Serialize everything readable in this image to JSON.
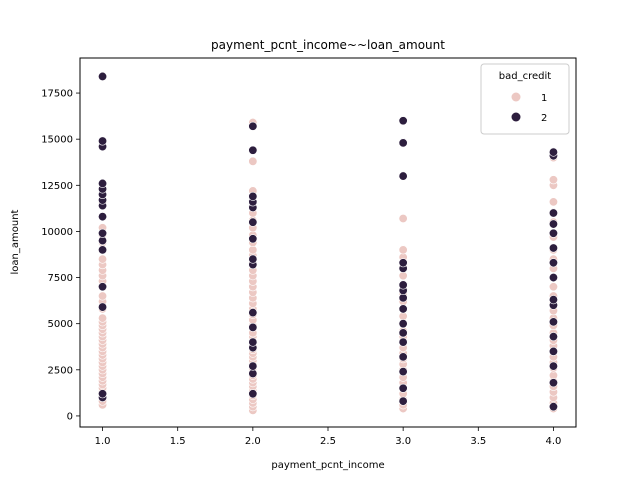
{
  "chart_data": {
    "type": "scatter",
    "title": "payment_pcnt_income~~loan_amount",
    "xlabel": "payment_pcnt_income",
    "ylabel": "loan_amount",
    "xlim": [
      0.85,
      4.15
    ],
    "ylim": [
      -600,
      19400
    ],
    "xticks": [
      1.0,
      1.5,
      2.0,
      2.5,
      3.0,
      3.5,
      4.0
    ],
    "xtick_labels": [
      "1.0",
      "1.5",
      "2.0",
      "2.5",
      "3.0",
      "3.5",
      "4.0"
    ],
    "yticks": [
      0,
      2500,
      5000,
      7500,
      10000,
      12500,
      15000,
      17500
    ],
    "ytick_labels": [
      "0",
      "2500",
      "5000",
      "7500",
      "10000",
      "12500",
      "15000",
      "17500"
    ],
    "grid": false,
    "legend": {
      "title": "bad_credit",
      "placement": "top-right"
    },
    "series": [
      {
        "name": "1",
        "color": "#ecc8c3",
        "points": [
          [
            1,
            600
          ],
          [
            1,
            800
          ],
          [
            1,
            1000
          ],
          [
            1,
            1300
          ],
          [
            1,
            1500
          ],
          [
            1,
            1700
          ],
          [
            1,
            1900
          ],
          [
            1,
            2100
          ],
          [
            1,
            2300
          ],
          [
            1,
            2500
          ],
          [
            1,
            2700
          ],
          [
            1,
            2900
          ],
          [
            1,
            3100
          ],
          [
            1,
            3300
          ],
          [
            1,
            3500
          ],
          [
            1,
            3700
          ],
          [
            1,
            3900
          ],
          [
            1,
            4100
          ],
          [
            1,
            4300
          ],
          [
            1,
            4500
          ],
          [
            1,
            4700
          ],
          [
            1,
            4900
          ],
          [
            1,
            5100
          ],
          [
            1,
            5300
          ],
          [
            1,
            5800
          ],
          [
            1,
            6200
          ],
          [
            1,
            6500
          ],
          [
            1,
            7000
          ],
          [
            1,
            7300
          ],
          [
            1,
            7600
          ],
          [
            1,
            7900
          ],
          [
            1,
            8200
          ],
          [
            1,
            8500
          ],
          [
            1,
            9000
          ],
          [
            1,
            9400
          ],
          [
            1,
            9800
          ],
          [
            1,
            10200
          ],
          [
            1,
            10800
          ],
          [
            1,
            11500
          ],
          [
            2,
            300
          ],
          [
            2,
            500
          ],
          [
            2,
            700
          ],
          [
            2,
            900
          ],
          [
            2,
            1100
          ],
          [
            2,
            1400
          ],
          [
            2,
            1600
          ],
          [
            2,
            1800
          ],
          [
            2,
            2000
          ],
          [
            2,
            2200
          ],
          [
            2,
            2400
          ],
          [
            2,
            2600
          ],
          [
            2,
            2800
          ],
          [
            2,
            3000
          ],
          [
            2,
            3200
          ],
          [
            2,
            3400
          ],
          [
            2,
            3600
          ],
          [
            2,
            3800
          ],
          [
            2,
            4000
          ],
          [
            2,
            4300
          ],
          [
            2,
            4500
          ],
          [
            2,
            4900
          ],
          [
            2,
            5200
          ],
          [
            2,
            5500
          ],
          [
            2,
            5800
          ],
          [
            2,
            6100
          ],
          [
            2,
            6400
          ],
          [
            2,
            6700
          ],
          [
            2,
            7000
          ],
          [
            2,
            7300
          ],
          [
            2,
            7600
          ],
          [
            2,
            7900
          ],
          [
            2,
            8300
          ],
          [
            2,
            8700
          ],
          [
            2,
            9000
          ],
          [
            2,
            9400
          ],
          [
            2,
            9800
          ],
          [
            2,
            10200
          ],
          [
            2,
            10600
          ],
          [
            2,
            11000
          ],
          [
            2,
            11400
          ],
          [
            2,
            11900
          ],
          [
            2,
            12200
          ],
          [
            2,
            13800
          ],
          [
            2,
            15900
          ],
          [
            3,
            400
          ],
          [
            3,
            600
          ],
          [
            3,
            900
          ],
          [
            3,
            1200
          ],
          [
            3,
            1500
          ],
          [
            3,
            1800
          ],
          [
            3,
            2100
          ],
          [
            3,
            2500
          ],
          [
            3,
            2800
          ],
          [
            3,
            3100
          ],
          [
            3,
            3400
          ],
          [
            3,
            3700
          ],
          [
            3,
            4000
          ],
          [
            3,
            4300
          ],
          [
            3,
            4600
          ],
          [
            3,
            5000
          ],
          [
            3,
            5400
          ],
          [
            3,
            5800
          ],
          [
            3,
            6200
          ],
          [
            3,
            6600
          ],
          [
            3,
            7100
          ],
          [
            3,
            7600
          ],
          [
            3,
            8100
          ],
          [
            3,
            8600
          ],
          [
            3,
            9000
          ],
          [
            3,
            10700
          ],
          [
            4,
            400
          ],
          [
            4,
            700
          ],
          [
            4,
            1000
          ],
          [
            4,
            1300
          ],
          [
            4,
            1600
          ],
          [
            4,
            1900
          ],
          [
            4,
            2200
          ],
          [
            4,
            2600
          ],
          [
            4,
            2900
          ],
          [
            4,
            3200
          ],
          [
            4,
            3500
          ],
          [
            4,
            3800
          ],
          [
            4,
            4100
          ],
          [
            4,
            4500
          ],
          [
            4,
            4900
          ],
          [
            4,
            5300
          ],
          [
            4,
            5700
          ],
          [
            4,
            6100
          ],
          [
            4,
            6500
          ],
          [
            4,
            7000
          ],
          [
            4,
            7500
          ],
          [
            4,
            8000
          ],
          [
            4,
            8500
          ],
          [
            4,
            9000
          ],
          [
            4,
            9700
          ],
          [
            4,
            10500
          ],
          [
            4,
            11600
          ],
          [
            4,
            12500
          ],
          [
            4,
            12800
          ],
          [
            4,
            14000
          ]
        ]
      },
      {
        "name": "2",
        "color": "#2d1e3e",
        "points": [
          [
            1,
            1000
          ],
          [
            1,
            1200
          ],
          [
            1,
            5900
          ],
          [
            1,
            7000
          ],
          [
            1,
            9000
          ],
          [
            1,
            9500
          ],
          [
            1,
            9900
          ],
          [
            1,
            10800
          ],
          [
            1,
            11400
          ],
          [
            1,
            11700
          ],
          [
            1,
            12000
          ],
          [
            1,
            12300
          ],
          [
            1,
            12600
          ],
          [
            1,
            14600
          ],
          [
            1,
            14900
          ],
          [
            1,
            18400
          ],
          [
            2,
            1200
          ],
          [
            2,
            2300
          ],
          [
            2,
            2700
          ],
          [
            2,
            3700
          ],
          [
            2,
            4000
          ],
          [
            2,
            4800
          ],
          [
            2,
            5600
          ],
          [
            2,
            8200
          ],
          [
            2,
            8500
          ],
          [
            2,
            9600
          ],
          [
            2,
            10500
          ],
          [
            2,
            11300
          ],
          [
            2,
            11600
          ],
          [
            2,
            11900
          ],
          [
            2,
            14400
          ],
          [
            2,
            15700
          ],
          [
            3,
            800
          ],
          [
            3,
            1500
          ],
          [
            3,
            2400
          ],
          [
            3,
            3200
          ],
          [
            3,
            4000
          ],
          [
            3,
            4500
          ],
          [
            3,
            5000
          ],
          [
            3,
            5800
          ],
          [
            3,
            6400
          ],
          [
            3,
            6800
          ],
          [
            3,
            7100
          ],
          [
            3,
            8000
          ],
          [
            3,
            8300
          ],
          [
            3,
            13000
          ],
          [
            3,
            14800
          ],
          [
            3,
            16000
          ],
          [
            4,
            500
          ],
          [
            4,
            1800
          ],
          [
            4,
            2700
          ],
          [
            4,
            3500
          ],
          [
            4,
            4300
          ],
          [
            4,
            5100
          ],
          [
            4,
            6000
          ],
          [
            4,
            6300
          ],
          [
            4,
            7500
          ],
          [
            4,
            8300
          ],
          [
            4,
            9100
          ],
          [
            4,
            9900
          ],
          [
            4,
            10400
          ],
          [
            4,
            11000
          ],
          [
            4,
            14100
          ],
          [
            4,
            14300
          ]
        ]
      }
    ]
  }
}
